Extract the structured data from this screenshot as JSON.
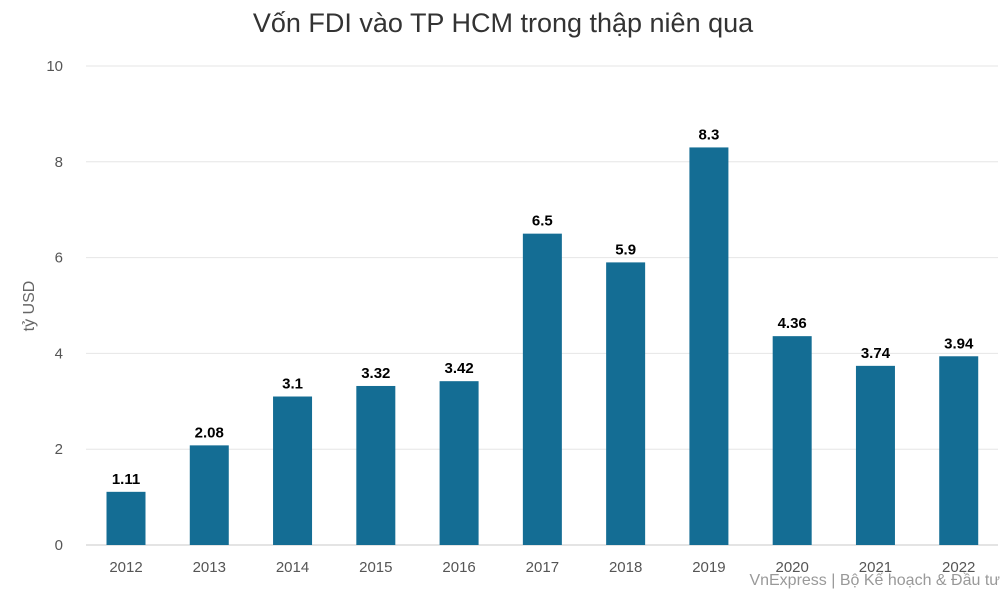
{
  "chart_data": {
    "type": "bar",
    "title": "Vốn FDI vào TP HCM trong thập niên qua",
    "xlabel": "",
    "ylabel": "tỷ USD",
    "categories": [
      "2012",
      "2013",
      "2014",
      "2015",
      "2016",
      "2017",
      "2018",
      "2019",
      "2020",
      "2021",
      "2022"
    ],
    "values": [
      1.11,
      2.08,
      3.1,
      3.32,
      3.42,
      6.5,
      5.9,
      8.3,
      4.36,
      3.74,
      3.94
    ],
    "value_labels": [
      "1.11",
      "2.08",
      "3.1",
      "3.32",
      "3.42",
      "6.5",
      "5.9",
      "8.3",
      "4.36",
      "3.74",
      "3.94"
    ],
    "ylim": [
      0,
      10
    ],
    "yticks": [
      "0",
      "2",
      "4",
      "6",
      "8",
      "10"
    ],
    "grid": true,
    "legend": "none",
    "bar_color": "#146d94",
    "source": "VnExpress | Bộ Kế hoạch & Đầu tư"
  }
}
